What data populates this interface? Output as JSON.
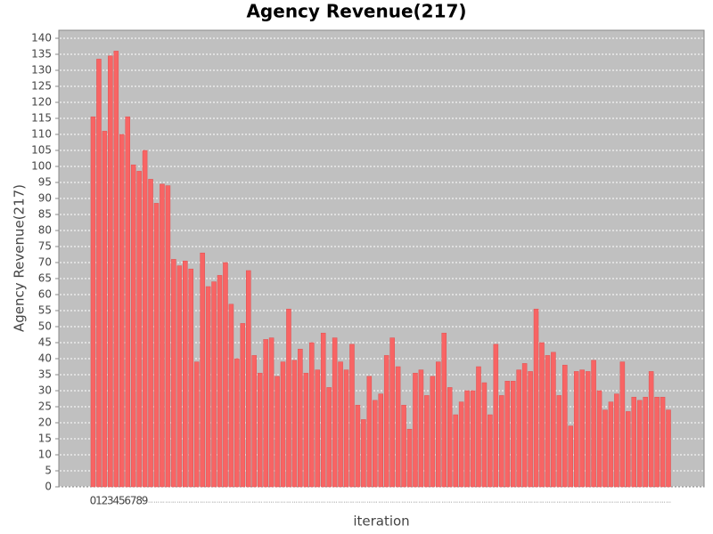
{
  "chart_data": {
    "type": "bar",
    "title": "Agency Revenue(217)",
    "x_label": "iteration",
    "y_label": "Agency Revenue(217)",
    "categories": [
      "0",
      "1",
      "2",
      "3",
      "4",
      "5",
      "6",
      "7",
      "8",
      "9",
      "...",
      "...",
      "...",
      "...",
      "...",
      "...",
      "...",
      "...",
      "...",
      "...",
      "...",
      "...",
      "...",
      "...",
      "...",
      "...",
      "...",
      "...",
      "...",
      "...",
      "...",
      "...",
      "...",
      "...",
      "...",
      "...",
      "...",
      "...",
      "...",
      "...",
      "...",
      "...",
      "...",
      "...",
      "...",
      "...",
      "...",
      "...",
      "...",
      "...",
      "...",
      "...",
      "...",
      "...",
      "...",
      "...",
      "...",
      "...",
      "...",
      "...",
      "...",
      "...",
      "...",
      "...",
      "...",
      "...",
      "...",
      "...",
      "...",
      "...",
      "...",
      "...",
      "...",
      "...",
      "...",
      "...",
      "...",
      "...",
      "...",
      "...",
      "...",
      "...",
      "...",
      "...",
      "...",
      "...",
      "...",
      "...",
      "...",
      "...",
      "...",
      "...",
      "...",
      "...",
      "...",
      "...",
      "...",
      "...",
      "...",
      "...",
      "..."
    ],
    "values": [
      115.5,
      133.5,
      111,
      134.5,
      136,
      110,
      115.5,
      100.5,
      98.5,
      105,
      96,
      88.5,
      94.5,
      94,
      71,
      69,
      70.5,
      68,
      39,
      73,
      62.5,
      64,
      66,
      70,
      57,
      40,
      51,
      67.5,
      41,
      35.5,
      46,
      46.5,
      34.5,
      39,
      55.5,
      39.5,
      43,
      35.5,
      45,
      36.5,
      48,
      31,
      46.5,
      39,
      36.5,
      44.5,
      25.5,
      21,
      34.5,
      27,
      29,
      41,
      46.5,
      37.5,
      25.5,
      18,
      35.5,
      36.5,
      28.5,
      34.5,
      39,
      48,
      31,
      22.5,
      26.5,
      30,
      30,
      37.5,
      32.5,
      22.5,
      44.5,
      28.5,
      33,
      33,
      36.5,
      38.5,
      36,
      55.5,
      45,
      41,
      42,
      28.5,
      38,
      19,
      36,
      36.5,
      36,
      39.5,
      30,
      24,
      26.5,
      29,
      39,
      23.5,
      28,
      27,
      28,
      36,
      28,
      28,
      24
    ],
    "color": "#f86464",
    "ylim": [
      0,
      142.5
    ],
    "yticks": [
      0,
      5,
      10,
      15,
      20,
      25,
      30,
      35,
      40,
      45,
      50,
      55,
      60,
      65,
      70,
      75,
      80,
      85,
      90,
      95,
      100,
      105,
      110,
      115,
      120,
      125,
      130,
      135,
      140
    ],
    "grid": true
  }
}
